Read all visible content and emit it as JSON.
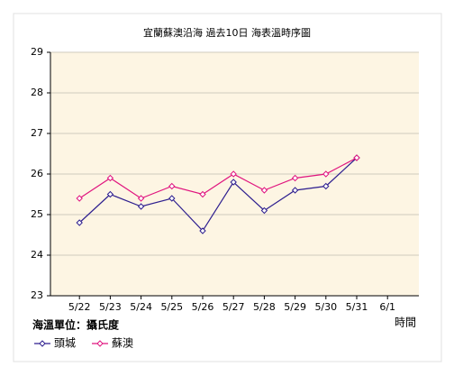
{
  "chart_data": {
    "type": "line",
    "title": "宜蘭蘇澳沿海 過去10日 海表溫時序圖",
    "x_label": "時間",
    "y_label": "海溫單位：攝氏度",
    "categories": [
      "5/22",
      "5/23",
      "5/24",
      "5/25",
      "5/26",
      "5/27",
      "5/28",
      "5/29",
      "5/30",
      "5/31",
      "6/1"
    ],
    "series": [
      {
        "name": "頭城",
        "color": "#2e1f8f",
        "values": [
          24.8,
          25.5,
          25.2,
          25.4,
          24.6,
          25.8,
          25.1,
          25.6,
          25.7,
          26.4,
          null
        ]
      },
      {
        "name": "蘇澳",
        "color": "#e0157f",
        "values": [
          25.4,
          25.9,
          25.4,
          25.7,
          25.5,
          26.0,
          25.6,
          25.9,
          26.0,
          26.4,
          null
        ]
      }
    ],
    "ylim": [
      23,
      29
    ],
    "yticks": [
      23,
      24,
      25,
      26,
      27,
      28,
      29
    ],
    "grid": true,
    "background": "#fdf5e3"
  }
}
